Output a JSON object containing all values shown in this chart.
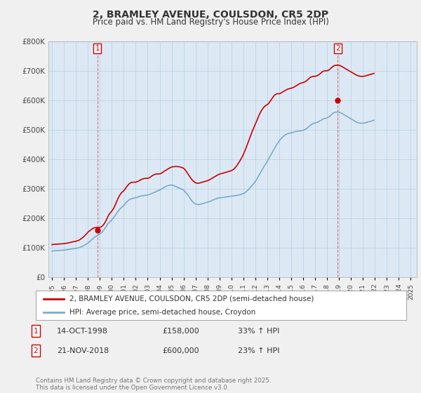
{
  "title": "2, BRAMLEY AVENUE, COULSDON, CR5 2DP",
  "subtitle": "Price paid vs. HM Land Registry's House Price Index (HPI)",
  "legend_label_red": "2, BRAMLEY AVENUE, COULSDON, CR5 2DP (semi-detached house)",
  "legend_label_blue": "HPI: Average price, semi-detached house, Croydon",
  "annotation1_date": "14-OCT-1998",
  "annotation1_price": "£158,000",
  "annotation1_hpi": "33% ↑ HPI",
  "annotation2_date": "21-NOV-2018",
  "annotation2_price": "£600,000",
  "annotation2_hpi": "23% ↑ HPI",
  "footer": "Contains HM Land Registry data © Crown copyright and database right 2025.\nThis data is licensed under the Open Government Licence v3.0.",
  "red_color": "#cc0000",
  "blue_color": "#7aabcc",
  "background_color": "#f0f0f0",
  "plot_background": "#dce9f5",
  "grid_color": "#b8cfe0",
  "ylim": [
    0,
    800000
  ],
  "yticks": [
    0,
    100000,
    200000,
    300000,
    400000,
    500000,
    600000,
    700000,
    800000
  ],
  "purchase1_year": 1998.79,
  "purchase1_price": 158000,
  "purchase2_year": 2018.88,
  "purchase2_price": 600000,
  "hpi_monthly": [
    88000,
    88500,
    89000,
    89200,
    89500,
    89800,
    90000,
    90200,
    90400,
    90600,
    90800,
    91000,
    91500,
    92000,
    92500,
    93000,
    93500,
    94000,
    94500,
    95000,
    95500,
    96000,
    96500,
    97000,
    97500,
    98000,
    98500,
    99500,
    100500,
    102000,
    103500,
    105000,
    107000,
    109000,
    111000,
    113000,
    115000,
    118000,
    121000,
    124000,
    127000,
    130000,
    133000,
    136000,
    138000,
    140000,
    142000,
    144000,
    146000,
    149000,
    152000,
    156000,
    160000,
    165000,
    170000,
    175000,
    180000,
    184000,
    188000,
    191000,
    194000,
    198000,
    202000,
    207000,
    212000,
    217000,
    222000,
    226000,
    230000,
    234000,
    237000,
    240000,
    243000,
    247000,
    251000,
    255000,
    258000,
    261000,
    263000,
    265000,
    266000,
    267000,
    268000,
    268500,
    269000,
    270000,
    271000,
    273000,
    274000,
    275000,
    275500,
    276000,
    276500,
    277000,
    277500,
    278000,
    278500,
    279500,
    280500,
    282000,
    283500,
    285000,
    286500,
    288000,
    289500,
    291000,
    292500,
    294000,
    295000,
    297000,
    299000,
    301000,
    303000,
    305000,
    307000,
    308500,
    310000,
    311000,
    311500,
    312000,
    312000,
    311500,
    310500,
    309000,
    307500,
    306000,
    304500,
    303000,
    301500,
    300000,
    298500,
    297000,
    295000,
    292000,
    288000,
    284000,
    280000,
    275000,
    270000,
    265000,
    260000,
    256000,
    253000,
    250000,
    248000,
    247000,
    246000,
    246000,
    246500,
    247000,
    248000,
    249000,
    250000,
    251000,
    252000,
    253000,
    254000,
    255000,
    256000,
    257500,
    259000,
    260500,
    262000,
    263500,
    265000,
    266000,
    267000,
    268000,
    268500,
    269000,
    269500,
    270000,
    270500,
    271000,
    271500,
    272000,
    272500,
    273000,
    273500,
    274000,
    274500,
    275000,
    275500,
    276000,
    276500,
    277000,
    277500,
    278000,
    279000,
    280000,
    281000,
    282000,
    283000,
    285000,
    287000,
    290000,
    293000,
    296500,
    300000,
    304000,
    308000,
    312000,
    316000,
    320000,
    325000,
    330000,
    335000,
    341000,
    347000,
    353000,
    359000,
    365000,
    371000,
    377000,
    382000,
    387000,
    393000,
    399000,
    405000,
    411000,
    417000,
    423000,
    429000,
    435000,
    441000,
    447000,
    452000,
    457000,
    462000,
    466000,
    470000,
    474000,
    477000,
    480000,
    482000,
    484000,
    486000,
    487000,
    488000,
    488500,
    489000,
    490000,
    491000,
    492000,
    493000,
    494000,
    494500,
    495000,
    495500,
    496000,
    496500,
    497000,
    498000,
    499500,
    501000,
    503000,
    505000,
    508000,
    511000,
    514000,
    517000,
    519000,
    521000,
    522000,
    523000,
    524000,
    525000,
    526500,
    528000,
    530000,
    532000,
    534000,
    536000,
    537500,
    538500,
    539000,
    540000,
    542000,
    544000,
    547000,
    550000,
    553000,
    556000,
    558000,
    559000,
    559500,
    560000,
    560000,
    559500,
    558500,
    557000,
    555000,
    553000,
    551000,
    549000,
    547000,
    545000,
    543000,
    541000,
    539000,
    537000,
    535000,
    533000,
    531000,
    529000,
    527000,
    525500,
    524000,
    523000,
    522500,
    522000,
    522000,
    522000,
    522500,
    523000,
    524000,
    525000,
    526000,
    527000,
    528000,
    529000,
    530000,
    531000,
    532000
  ],
  "price_monthly": [
    110000,
    110500,
    111000,
    111200,
    111500,
    111800,
    112000,
    112200,
    112400,
    112600,
    112800,
    113000,
    113500,
    114000,
    114500,
    115000,
    115800,
    116500,
    117200,
    118000,
    118800,
    119500,
    120200,
    121000,
    121800,
    122500,
    123500,
    125000,
    127000,
    129500,
    132000,
    134500,
    137500,
    141000,
    144500,
    148000,
    152000,
    155000,
    157500,
    160000,
    162500,
    165000,
    166500,
    167500,
    167800,
    168000,
    168200,
    168400,
    168500,
    170000,
    172000,
    175000,
    179000,
    184000,
    190000,
    197000,
    205000,
    211000,
    216000,
    220000,
    224000,
    229000,
    234000,
    241000,
    249000,
    257000,
    265000,
    272000,
    278000,
    283000,
    287000,
    290000,
    293000,
    297000,
    302000,
    307000,
    311000,
    315000,
    318000,
    320000,
    321000,
    321500,
    322000,
    322000,
    322000,
    323000,
    324500,
    326000,
    328000,
    330000,
    331500,
    333000,
    334000,
    334500,
    335000,
    335000,
    335000,
    336000,
    337500,
    340000,
    342500,
    345000,
    346500,
    348000,
    349000,
    349500,
    350000,
    350000,
    350000,
    351000,
    353000,
    355000,
    357500,
    360000,
    362000,
    364000,
    366000,
    368000,
    370000,
    372000,
    373000,
    374000,
    374500,
    375000,
    375000,
    375000,
    375000,
    374500,
    374000,
    373000,
    372000,
    371000,
    369000,
    366000,
    362000,
    357000,
    352000,
    347000,
    342000,
    337000,
    332000,
    328000,
    325000,
    322000,
    320000,
    319000,
    318500,
    318500,
    319000,
    320000,
    321000,
    322000,
    323000,
    324000,
    325000,
    326000,
    327000,
    328500,
    330000,
    332000,
    334000,
    336000,
    338000,
    340000,
    342000,
    344000,
    346000,
    348000,
    349000,
    350000,
    351000,
    352000,
    353000,
    354000,
    355000,
    356000,
    357000,
    358000,
    359000,
    360000,
    361000,
    363000,
    365000,
    368000,
    372000,
    376000,
    381000,
    386000,
    391000,
    397000,
    403000,
    409000,
    416000,
    424000,
    432000,
    441000,
    450000,
    459000,
    468000,
    477000,
    486000,
    495000,
    503000,
    511000,
    519000,
    527000,
    535000,
    543000,
    551000,
    558000,
    564000,
    569000,
    574000,
    578000,
    581000,
    583000,
    585000,
    588000,
    592000,
    597000,
    602000,
    607000,
    612000,
    616000,
    619000,
    621000,
    622000,
    622000,
    622000,
    623000,
    625000,
    627000,
    629000,
    631000,
    633000,
    635000,
    637000,
    638000,
    639000,
    640000,
    641000,
    642000,
    643000,
    645000,
    647000,
    649000,
    651000,
    653000,
    655000,
    657000,
    658000,
    659000,
    660000,
    661000,
    663000,
    665000,
    668000,
    671000,
    674000,
    677000,
    679000,
    680000,
    681000,
    681000,
    681000,
    682000,
    683000,
    685000,
    687000,
    690000,
    693000,
    696000,
    698000,
    699000,
    700000,
    700000,
    700000,
    701000,
    703000,
    706000,
    709000,
    712000,
    715000,
    717000,
    718000,
    718500,
    719000,
    719000,
    718500,
    717500,
    716000,
    714000,
    712000,
    710000,
    708000,
    706000,
    704000,
    702000,
    700000,
    698000,
    696000,
    694000,
    692000,
    690000,
    688000,
    686000,
    684500,
    683000,
    682000,
    681500,
    681000,
    681000,
    681000,
    681500,
    682000,
    683000,
    684000,
    685000,
    686000,
    687000,
    688000,
    689000,
    690000,
    691000
  ]
}
